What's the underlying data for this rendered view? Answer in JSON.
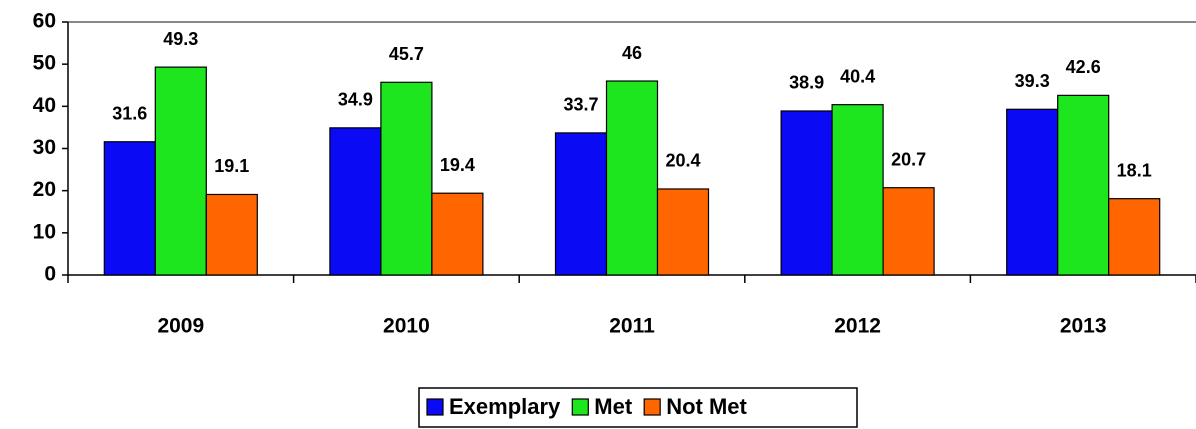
{
  "chart_data": {
    "type": "bar",
    "categories": [
      "2009",
      "2010",
      "2011",
      "2012",
      "2013"
    ],
    "series": [
      {
        "name": "Exemplary",
        "color": "#0a0af5",
        "values": [
          31.6,
          34.9,
          33.7,
          38.9,
          39.3
        ]
      },
      {
        "name": "Met",
        "color": "#1ee61e",
        "values": [
          49.3,
          45.7,
          46,
          40.4,
          42.6
        ]
      },
      {
        "name": "Not Met",
        "color": "#ff6600",
        "values": [
          19.1,
          19.4,
          20.4,
          20.7,
          18.1
        ]
      }
    ],
    "ylim": [
      0,
      60
    ],
    "yticks": [
      0,
      10,
      20,
      30,
      40,
      50,
      60
    ],
    "grid": false,
    "legend": "bottom"
  }
}
